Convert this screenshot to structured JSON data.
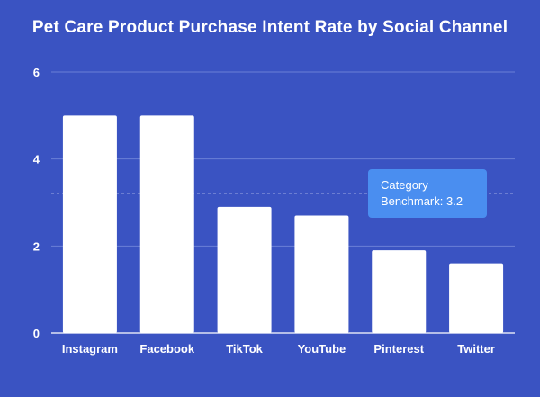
{
  "chart_data": {
    "type": "bar",
    "title": "Pet Care Product Purchase Intent Rate by Social Channel",
    "xlabel": "",
    "ylabel": "",
    "categories": [
      "Instagram",
      "Facebook",
      "TikTok",
      "YouTube",
      "Pinterest",
      "Twitter"
    ],
    "values": [
      5.0,
      5.0,
      2.9,
      2.7,
      1.9,
      1.6
    ],
    "ylim": [
      0,
      6
    ],
    "yticks": [
      "0",
      "2",
      "4",
      "6"
    ],
    "grid": true,
    "reference_line": {
      "value": 3.2,
      "label_line1": "Category",
      "label_line2": "Benchmark:  3.2"
    },
    "colors": {
      "background": "#3a53c2",
      "bar": "#ffffff",
      "annotation": "#4a8ef0"
    }
  }
}
